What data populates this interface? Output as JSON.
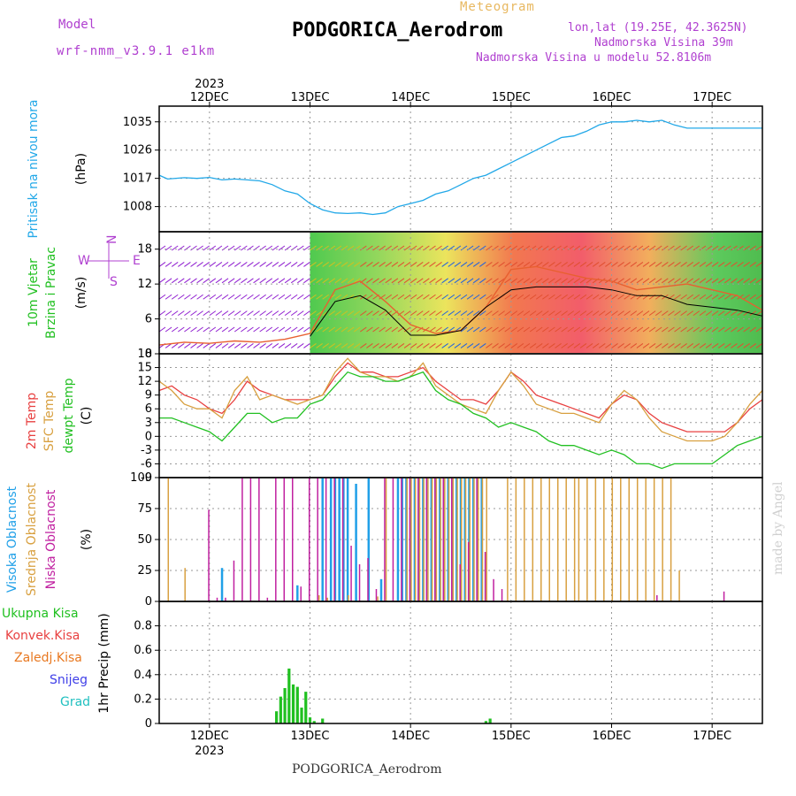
{
  "header": {
    "model_label": "Model",
    "model_name": "wrf-nmm_v3.9.1 e1km",
    "title": "PODGORICA_Aerodrom",
    "meteogram_label": "Meteogram",
    "lonlat": "lon,lat (19.25E, 42.3625N)",
    "elevation": "Nadmorska Visina 39m",
    "model_elevation": "Nadmorska Visina u modelu 52.8106m"
  },
  "footer": {
    "station": "PODGORICA_Aerodrom",
    "watermark": "made by Angel"
  },
  "colors": {
    "pressure": "#22a8e8",
    "temp2m": "#e84040",
    "sfc": "#d8a040",
    "dewpt": "#22c022",
    "high_cloud": "#20a0e8",
    "mid_cloud": "#d8a040",
    "low_cloud": "#c020a0",
    "total_precip": "#20c020",
    "conv_precip": "#e84040",
    "frozen_precip": "#e87820",
    "snow": "#4040e8",
    "graupel": "#20c0c0",
    "wind_speed_line": "#e86030",
    "gust_line": "#000000",
    "wind_barb_initial": "#9020d0"
  },
  "time_axis": {
    "year": "2023",
    "days": [
      "12DEC",
      "13DEC",
      "14DEC",
      "15DEC",
      "16DEC",
      "17DEC"
    ],
    "start_hour": -12,
    "end_hour": 132
  },
  "chart_data": [
    {
      "type": "line",
      "name": "pressure",
      "ylabel_lines": [
        "Pritisak na nivou mora",
        "(hPa)"
      ],
      "ylim": [
        1000,
        1040
      ],
      "yticks": [
        1008,
        1017,
        1026,
        1035
      ],
      "series": [
        {
          "name": "pressure",
          "x": [
            -12,
            -10,
            -6,
            -3,
            0,
            3,
            6,
            9,
            12,
            15,
            18,
            21,
            24,
            27,
            30,
            33,
            36,
            39,
            42,
            45,
            48,
            51,
            54,
            57,
            60,
            63,
            66,
            69,
            72,
            75,
            78,
            81,
            84,
            87,
            90,
            93,
            96,
            99,
            102,
            105,
            108,
            111,
            114,
            117,
            120,
            123,
            126,
            129,
            132
          ],
          "values": [
            1018,
            1016.8,
            1017.2,
            1017,
            1017.3,
            1016.5,
            1016.8,
            1016.5,
            1016.2,
            1015,
            1013,
            1012,
            1009,
            1007,
            1006,
            1005.8,
            1006,
            1005.5,
            1006,
            1008,
            1009,
            1010,
            1012,
            1013,
            1015,
            1017,
            1018,
            1020,
            1022,
            1024,
            1026,
            1028,
            1030,
            1030.5,
            1032,
            1034,
            1035,
            1035,
            1035.5,
            1035,
            1035.5,
            1034,
            1033,
            1033,
            1033,
            1033,
            1033,
            1033,
            1033
          ]
        }
      ]
    },
    {
      "type": "wind",
      "name": "wind",
      "ylabel_lines": [
        "10m Vjetar",
        "Brzina i Pravac",
        "(m/s)"
      ],
      "direction_key": [
        "N",
        "E",
        "W",
        "S"
      ],
      "ylim": [
        0,
        21
      ],
      "yticks": [
        0,
        6,
        12,
        18
      ],
      "series": [
        {
          "name": "speed",
          "x": [
            -12,
            -6,
            0,
            6,
            12,
            18,
            24,
            30,
            36,
            42,
            48,
            54,
            60,
            66,
            72,
            78,
            84,
            90,
            96,
            102,
            108,
            114,
            120,
            126,
            132
          ],
          "values": [
            1.5,
            2,
            1.8,
            2.2,
            2,
            2.5,
            3.5,
            11,
            12.5,
            9,
            5,
            3.5,
            4,
            8,
            14.5,
            15,
            14,
            13,
            12.5,
            11,
            11.5,
            12,
            11,
            10,
            7.5
          ]
        },
        {
          "name": "gust",
          "x": [
            24,
            30,
            36,
            42,
            48,
            54,
            60,
            66,
            72,
            78,
            84,
            90,
            96,
            102,
            108,
            114,
            120,
            126,
            132
          ],
          "values": [
            3,
            9,
            10,
            7.5,
            3.2,
            3.2,
            4,
            8,
            11,
            11.5,
            11.5,
            11.5,
            11,
            10,
            10,
            8.5,
            8,
            7.5,
            6.5
          ]
        }
      ]
    },
    {
      "type": "line",
      "name": "temperature",
      "ylabel_lines": [
        "2m Temp",
        "SFC Temp",
        "dewpt Temp",
        "(C)"
      ],
      "ylim": [
        -9,
        18
      ],
      "yticks": [
        -9,
        -6,
        -3,
        0,
        3,
        6,
        9,
        12,
        15,
        18
      ],
      "series": [
        {
          "name": "2m Temp",
          "x": [
            -12,
            -9,
            -6,
            -3,
            0,
            3,
            6,
            9,
            12,
            15,
            18,
            21,
            24,
            27,
            30,
            33,
            36,
            39,
            42,
            45,
            48,
            51,
            54,
            57,
            60,
            63,
            66,
            69,
            72,
            75,
            78,
            81,
            84,
            87,
            90,
            93,
            96,
            99,
            102,
            105,
            108,
            111,
            114,
            117,
            120,
            123,
            126,
            129,
            132
          ],
          "values": [
            10,
            11,
            9,
            8,
            6,
            5,
            8,
            12,
            10,
            9,
            8,
            8,
            8,
            9,
            13,
            16,
            14,
            14,
            13,
            13,
            14,
            15,
            12,
            10,
            8,
            8,
            7,
            10,
            14,
            12,
            9,
            8,
            7,
            6,
            5,
            4,
            7,
            9,
            8,
            5,
            3,
            2,
            1,
            1,
            1,
            1,
            3,
            6,
            8
          ]
        },
        {
          "name": "SFC Temp",
          "x": [
            -12,
            -9,
            -6,
            -3,
            0,
            3,
            6,
            9,
            12,
            15,
            18,
            21,
            24,
            27,
            30,
            33,
            36,
            39,
            42,
            45,
            48,
            51,
            54,
            57,
            60,
            63,
            66,
            69,
            72,
            75,
            78,
            81,
            84,
            87,
            90,
            93,
            96,
            99,
            102,
            105,
            108,
            111,
            114,
            117,
            120,
            123,
            126,
            129,
            132
          ],
          "values": [
            12,
            10,
            7,
            6,
            6,
            4,
            10,
            13,
            8,
            9,
            8,
            7,
            8,
            9,
            14,
            17,
            14,
            13,
            13,
            12,
            13,
            16,
            11,
            9,
            7,
            6,
            5,
            10,
            14,
            11,
            7,
            6,
            5,
            5,
            4,
            3,
            7,
            10,
            8,
            4,
            1,
            0,
            -1,
            -1,
            -1,
            0,
            3,
            7,
            10
          ]
        },
        {
          "name": "dewpt Temp",
          "x": [
            -12,
            -9,
            -6,
            -3,
            0,
            3,
            6,
            9,
            12,
            15,
            18,
            21,
            24,
            27,
            30,
            33,
            36,
            39,
            42,
            45,
            48,
            51,
            54,
            57,
            60,
            63,
            66,
            69,
            72,
            75,
            78,
            81,
            84,
            87,
            90,
            93,
            96,
            99,
            102,
            105,
            108,
            111,
            114,
            117,
            120,
            123,
            126,
            129,
            132
          ],
          "values": [
            4,
            4,
            3,
            2,
            1,
            -1,
            2,
            5,
            5,
            3,
            4,
            4,
            7,
            8,
            11,
            14,
            13,
            13,
            12,
            12,
            13,
            14,
            10,
            8,
            7,
            5,
            4,
            2,
            3,
            2,
            1,
            -1,
            -2,
            -2,
            -3,
            -4,
            -3,
            -4,
            -6,
            -6,
            -7,
            -6,
            -6,
            -6,
            -6,
            -4,
            -2,
            -1,
            0
          ]
        }
      ]
    },
    {
      "type": "bar",
      "name": "cloud",
      "ylabel_lines": [
        "Visoka Oblacnost",
        "Srednja Oblacnost",
        "Niska Oblacnost",
        "(%)"
      ],
      "ylim": [
        0,
        100
      ],
      "yticks": [
        0,
        25,
        50,
        75,
        100
      ],
      "series": [
        {
          "name": "Visoka Oblacnost",
          "x": [
            3,
            21,
            27,
            29,
            30,
            31,
            32,
            33,
            35,
            38,
            41,
            45,
            46,
            47,
            48,
            49,
            50,
            51,
            52,
            53,
            54,
            55,
            56,
            57,
            58,
            59,
            60,
            61,
            62,
            63,
            64,
            65
          ],
          "values": [
            27,
            13,
            100,
            100,
            100,
            100,
            100,
            100,
            95,
            100,
            18,
            100,
            100,
            100,
            100,
            100,
            100,
            100,
            100,
            100,
            100,
            100,
            100,
            100,
            100,
            100,
            100,
            100,
            100,
            100,
            100,
            100
          ]
        },
        {
          "name": "Srednja Oblacnost",
          "x": [
            -10,
            -6,
            26,
            28,
            33,
            40,
            42,
            47,
            48,
            49,
            50,
            51,
            52,
            53,
            54,
            55,
            56,
            57,
            58,
            59,
            60,
            61,
            62,
            63,
            64,
            65,
            66,
            71,
            73,
            75,
            77,
            79,
            81,
            83,
            85,
            87,
            88,
            90,
            92,
            94,
            96,
            98,
            100,
            102,
            104,
            106,
            108,
            110,
            112
          ],
          "values": [
            100,
            27,
            5,
            3,
            5,
            4,
            100,
            100,
            100,
            100,
            100,
            100,
            100,
            100,
            100,
            100,
            100,
            100,
            100,
            100,
            100,
            100,
            100,
            100,
            100,
            100,
            100,
            100,
            100,
            100,
            100,
            100,
            100,
            100,
            100,
            100,
            100,
            100,
            100,
            100,
            100,
            100,
            100,
            100,
            100,
            100,
            100,
            100,
            25
          ]
        },
        {
          "name": "Niska Oblacnost",
          "x": [
            0,
            2,
            4,
            6,
            8,
            10,
            12,
            14,
            16,
            18,
            20,
            22,
            24,
            26,
            28,
            30,
            32,
            34,
            36,
            38,
            40,
            42,
            44,
            46,
            48,
            50,
            52,
            54,
            56,
            58,
            60,
            62,
            64,
            66,
            68,
            70,
            107,
            123
          ],
          "values": [
            74,
            3,
            3,
            33,
            100,
            100,
            100,
            3,
            100,
            100,
            100,
            12,
            100,
            100,
            100,
            100,
            100,
            45,
            30,
            35,
            10,
            100,
            100,
            100,
            100,
            100,
            100,
            100,
            100,
            100,
            30,
            48,
            100,
            40,
            18,
            10,
            5,
            8
          ]
        }
      ]
    },
    {
      "type": "bar",
      "name": "precipitation",
      "ylabel_lines": [
        "1hr Precip (mm)"
      ],
      "legend": [
        "Ukupna Kisa",
        "Konvek.Kisa",
        "Zaledj.Kisa",
        "Snijeg",
        "Grad"
      ],
      "ylim": [
        0,
        1.0
      ],
      "yticks": [
        0,
        0.2,
        0.4,
        0.6,
        0.8
      ],
      "series": [
        {
          "name": "Ukupna Kisa",
          "x": [
            16,
            17,
            18,
            19,
            20,
            21,
            22,
            23,
            24,
            25,
            27,
            66,
            67
          ],
          "values": [
            0.1,
            0.22,
            0.29,
            0.45,
            0.32,
            0.3,
            0.13,
            0.26,
            0.05,
            0.02,
            0.04,
            0.02,
            0.04
          ]
        }
      ]
    }
  ]
}
